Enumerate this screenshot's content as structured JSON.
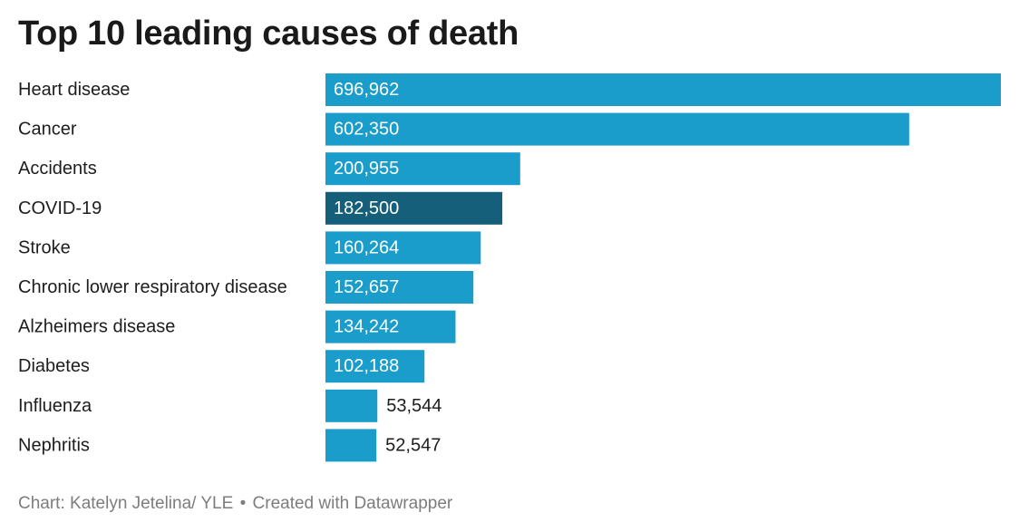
{
  "chart_data": {
    "type": "bar",
    "orientation": "horizontal",
    "title": "Top 10 leading causes of death",
    "categories": [
      "Heart disease",
      "Cancer",
      "Accidents",
      "COVID-19",
      "Stroke",
      "Chronic lower respiratory disease",
      "Alzheimers disease",
      "Diabetes",
      "Influenza",
      "Nephritis"
    ],
    "values": [
      696962,
      602350,
      200955,
      182500,
      160264,
      152657,
      134242,
      102188,
      53544,
      52547
    ],
    "value_labels": [
      "696,962",
      "602,350",
      "200,955",
      "182,500",
      "160,264",
      "152,657",
      "134,242",
      "102,188",
      "53,544",
      "52,547"
    ],
    "highlight_category": "COVID-19",
    "xlim": [
      0,
      696962
    ],
    "grid": false,
    "legend": "none"
  },
  "colors": {
    "bar": "#1b9dcc",
    "highlight": "#155f7a",
    "label_inside": "#ffffff",
    "label_outside": "#1d1d1d"
  },
  "footer": {
    "source": "Chart: Katelyn Jetelina/ YLE",
    "separator": "•",
    "credit": "Created with Datawrapper"
  }
}
